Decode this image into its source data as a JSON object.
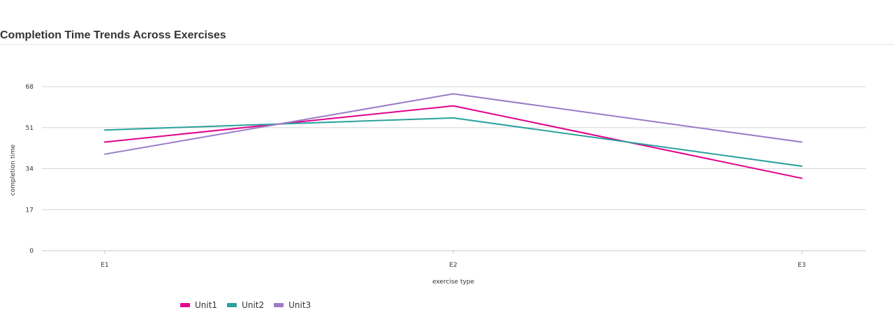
{
  "title": "Completion Time Trends Across Exercises",
  "chart_data": {
    "type": "line",
    "title": "Completion Time Trends Across Exercises",
    "xlabel": "exercise type",
    "ylabel": "completion time",
    "categories": [
      "E1",
      "E2",
      "E3"
    ],
    "y_ticks": [
      "0",
      "17",
      "34",
      "51",
      "68"
    ],
    "ylim": [
      0,
      68
    ],
    "grid": true,
    "legend_position": "bottom-left",
    "series": [
      {
        "name": "Unit1",
        "color": "#E3008C",
        "values": [
          45,
          60,
          30
        ]
      },
      {
        "name": "Unit2",
        "color": "#2AA19E",
        "values": [
          50,
          55,
          35
        ]
      },
      {
        "name": "Unit3",
        "color": "#9B7BC7",
        "values": [
          40,
          65,
          45
        ]
      }
    ]
  }
}
